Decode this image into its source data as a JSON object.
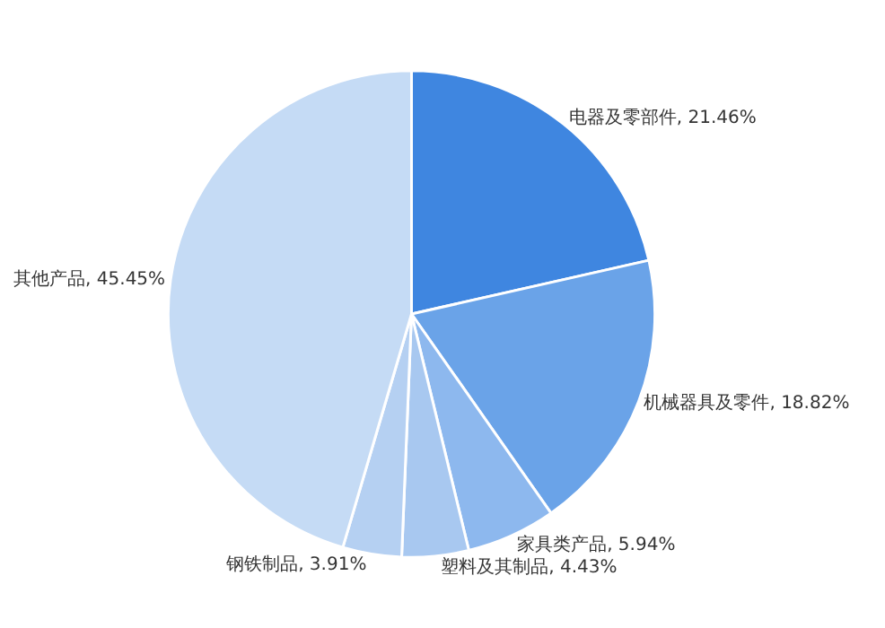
{
  "chart_data": {
    "type": "pie",
    "categories": [
      "电器及零部件",
      "机械器具及零件",
      "家具类产品",
      "塑料及其制品",
      "钢铁制品",
      "其他产品"
    ],
    "values": [
      21.46,
      18.82,
      5.94,
      4.43,
      3.91,
      45.45
    ],
    "value_labels": [
      "21.46%",
      "18.82%",
      "5.94%",
      "4.43%",
      "3.91%",
      "45.45%"
    ],
    "colors": [
      "#3f86e0",
      "#6aa3e8",
      "#8db8ee",
      "#a8c8f0",
      "#b5d0f2",
      "#c5dbf5"
    ],
    "legend": false
  }
}
